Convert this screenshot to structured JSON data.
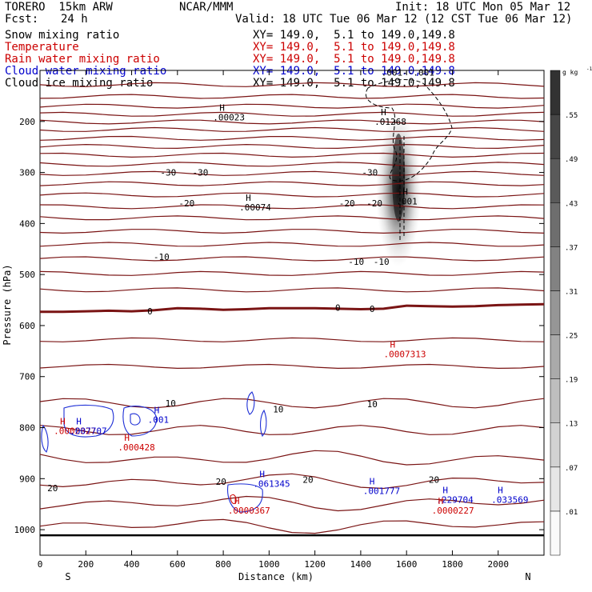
{
  "header": {
    "model": "TORERO  15km ARW",
    "org": "NCAR/MMM",
    "init": "Init: 18 UTC Mon 05 Mar 12",
    "fcst_label": "Fcst:",
    "fcst_value": "24 h",
    "valid": "Valid: 18 UTC Tue 06 Mar 12 (12 CST Tue 06 Mar 12)"
  },
  "legend": [
    {
      "name": "Snow mixing ratio",
      "xy": "XY= 149.0,  5.1 to 149.0,149.8",
      "color": "#000000"
    },
    {
      "name": "Temperature",
      "xy": "XY= 149.0,  5.1 to 149.0,149.8",
      "color": "#cc0000"
    },
    {
      "name": "Rain water mixing ratio",
      "xy": "XY= 149.0,  5.1 to 149.0,149.8",
      "color": "#cc0000"
    },
    {
      "name": "Cloud water mixing ratio",
      "xy": "XY= 149.0,  5.1 to 149.0,149.8",
      "color": "#0000cc"
    },
    {
      "name": "Cloud ice mixing ratio",
      "xy": "XY= 149.0,  5.1 to 149.0,149.8",
      "color": "#000000"
    }
  ],
  "chart_data": {
    "type": "cross-section contour",
    "xlabel": "Distance (km)",
    "ylabel": "Pressure (hPa)",
    "x_ticks": [
      0,
      200,
      400,
      600,
      800,
      1000,
      1200,
      1400,
      1600,
      1800,
      2000
    ],
    "xlim": [
      0,
      2200
    ],
    "y_ticks": [
      200,
      300,
      400,
      500,
      600,
      700,
      800,
      900,
      1000
    ],
    "ylim": [
      100,
      1050
    ],
    "left_end": "S",
    "right_end": "N",
    "colorbar": {
      "unit": "g kg",
      "unit_exp": "-1",
      "levels": [
        ".01",
        ".07",
        ".13",
        ".19",
        ".25",
        ".31",
        ".37",
        ".43",
        ".49",
        ".55"
      ]
    },
    "isotherm_labels": [
      {
        "text": "-30",
        "x": 560,
        "p": 300
      },
      {
        "text": "-30",
        "x": 700,
        "p": 300
      },
      {
        "text": "-30",
        "x": 1440,
        "p": 300
      },
      {
        "text": "-20",
        "x": 640,
        "p": 360
      },
      {
        "text": "-20",
        "x": 1340,
        "p": 360
      },
      {
        "text": "-20",
        "x": 1460,
        "p": 360
      },
      {
        "text": "-10",
        "x": 530,
        "p": 465
      },
      {
        "text": "-10",
        "x": 1380,
        "p": 475
      },
      {
        "text": "-10",
        "x": 1490,
        "p": 475
      },
      {
        "text": "0",
        "x": 480,
        "p": 572
      },
      {
        "text": "0",
        "x": 1300,
        "p": 565
      },
      {
        "text": "0",
        "x": 1450,
        "p": 567
      },
      {
        "text": "10",
        "x": 570,
        "p": 752
      },
      {
        "text": "10",
        "x": 1040,
        "p": 764
      },
      {
        "text": "10",
        "x": 1450,
        "p": 754
      },
      {
        "text": "20",
        "x": 55,
        "p": 918
      },
      {
        "text": "20",
        "x": 790,
        "p": 906
      },
      {
        "text": "20",
        "x": 1170,
        "p": 902
      },
      {
        "text": "20",
        "x": 1720,
        "p": 902
      }
    ],
    "maxima": [
      {
        "value": ".00023",
        "x": 755,
        "p": 192,
        "color": "#000000"
      },
      {
        "value": ".01268",
        "x": 1460,
        "p": 200,
        "color": "#000000"
      },
      {
        "value": ".00074",
        "x": 870,
        "p": 368,
        "color": "#000000"
      },
      {
        "value": ".001",
        "x": 1555,
        "p": 356,
        "color": "#000000"
      },
      {
        "value": ".0007313",
        "x": 1500,
        "p": 656,
        "color": "#cc0000"
      },
      {
        "value": ".0002327",
        "x": 60,
        "p": 806,
        "color": "#cc0000"
      },
      {
        "value": ".007707",
        "x": 130,
        "p": 806,
        "color": "#0000cc"
      },
      {
        "value": ".001",
        "x": 470,
        "p": 784,
        "color": "#0000cc"
      },
      {
        "value": ".000428",
        "x": 340,
        "p": 838,
        "color": "#cc0000"
      },
      {
        "value": ".061345",
        "x": 930,
        "p": 910,
        "color": "#0000cc"
      },
      {
        "value": ".0000367",
        "x": 820,
        "p": 962,
        "color": "#cc0000"
      },
      {
        "value": ".001777",
        "x": 1410,
        "p": 924,
        "color": "#0000cc"
      },
      {
        "value": ".229704",
        "x": 1730,
        "p": 941,
        "color": "#0000cc"
      },
      {
        "value": ".0000227",
        "x": 1710,
        "p": 962,
        "color": "#cc0000"
      },
      {
        "value": ".033569",
        "x": 1970,
        "p": 941,
        "color": "#0000cc"
      }
    ],
    "top_label": ".001--.001"
  }
}
